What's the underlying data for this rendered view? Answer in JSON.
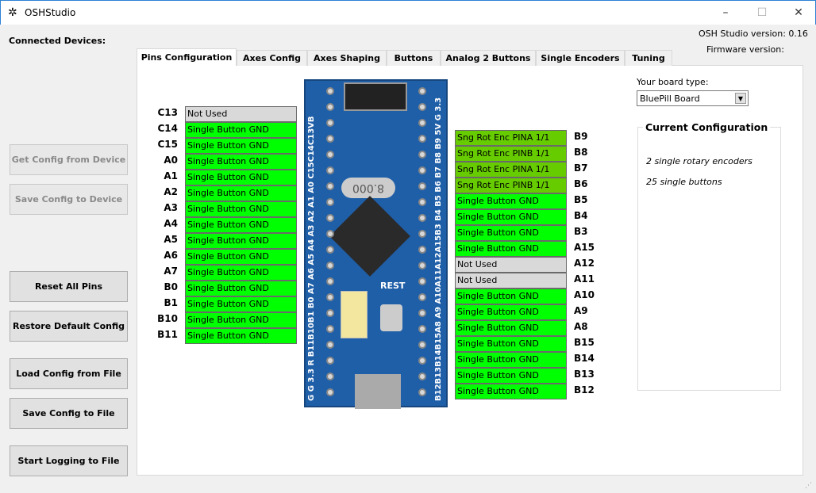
{
  "window": {
    "title": "OSHStudio",
    "app_icon": "gear-icon",
    "minimize": "–",
    "maximize": "☐",
    "close": "✕"
  },
  "connected_devices_label": "Connected Devices:",
  "version_label": "OSH Studio version: 0.16",
  "firmware_label": "Firmware version:",
  "tabs": [
    {
      "label": "Pins Configuration",
      "active": true
    },
    {
      "label": "Axes Config"
    },
    {
      "label": "Axes Shaping"
    },
    {
      "label": "Buttons"
    },
    {
      "label": "Analog 2 Buttons"
    },
    {
      "label": "Single Encoders"
    },
    {
      "label": "Tuning"
    }
  ],
  "buttons": {
    "get_config": "Get Config from Device",
    "save_config": "Save Config to Device",
    "reset": "Reset All Pins",
    "restore": "Restore Default Config",
    "load_file": "Load Config from File",
    "save_file": "Save Config to File",
    "logging": "Start Logging to File"
  },
  "board_type": {
    "label": "Your board type:",
    "value": "BluePill Board"
  },
  "current_config": {
    "title": "Current Configuration",
    "lines": [
      "2 single rotary encoders",
      "25 single buttons"
    ]
  },
  "colors": {
    "single_button": "#00ff00",
    "encoder": "#66cc00",
    "not_used": "#d9d9d9"
  },
  "left_pins": [
    {
      "pin": "C13",
      "value": "Not Used",
      "type": "not_used"
    },
    {
      "pin": "C14",
      "value": "Single Button GND",
      "type": "single_button"
    },
    {
      "pin": "C15",
      "value": "Single Button GND",
      "type": "single_button"
    },
    {
      "pin": "A0",
      "value": "Single Button GND",
      "type": "single_button"
    },
    {
      "pin": "A1",
      "value": "Single Button GND",
      "type": "single_button"
    },
    {
      "pin": "A2",
      "value": "Single Button GND",
      "type": "single_button"
    },
    {
      "pin": "A3",
      "value": "Single Button GND",
      "type": "single_button"
    },
    {
      "pin": "A4",
      "value": "Single Button GND",
      "type": "single_button"
    },
    {
      "pin": "A5",
      "value": "Single Button GND",
      "type": "single_button"
    },
    {
      "pin": "A6",
      "value": "Single Button GND",
      "type": "single_button"
    },
    {
      "pin": "A7",
      "value": "Single Button GND",
      "type": "single_button"
    },
    {
      "pin": "B0",
      "value": "Single Button GND",
      "type": "single_button"
    },
    {
      "pin": "B1",
      "value": "Single Button GND",
      "type": "single_button"
    },
    {
      "pin": "B10",
      "value": "Single Button GND",
      "type": "single_button"
    },
    {
      "pin": "B11",
      "value": "Single Button GND",
      "type": "single_button"
    }
  ],
  "right_pins": [
    {
      "pin": "B9",
      "value": "Sng Rot Enc PINA 1/1",
      "type": "encoder"
    },
    {
      "pin": "B8",
      "value": "Sng Rot Enc PINB 1/1",
      "type": "encoder"
    },
    {
      "pin": "B7",
      "value": "Sng Rot Enc PINA 1/1",
      "type": "encoder"
    },
    {
      "pin": "B6",
      "value": "Sng Rot Enc PINB 1/1",
      "type": "encoder"
    },
    {
      "pin": "B5",
      "value": "Single Button GND",
      "type": "single_button"
    },
    {
      "pin": "B4",
      "value": "Single Button GND",
      "type": "single_button"
    },
    {
      "pin": "B3",
      "value": "Single Button GND",
      "type": "single_button"
    },
    {
      "pin": "A15",
      "value": "Single Button GND",
      "type": "single_button"
    },
    {
      "pin": "A12",
      "value": "Not Used",
      "type": "not_used"
    },
    {
      "pin": "A11",
      "value": "Not Used",
      "type": "not_used"
    },
    {
      "pin": "A10",
      "value": "Single Button GND",
      "type": "single_button"
    },
    {
      "pin": "A9",
      "value": "Single Button GND",
      "type": "single_button"
    },
    {
      "pin": "A8",
      "value": "Single Button GND",
      "type": "single_button"
    },
    {
      "pin": "B15",
      "value": "Single Button GND",
      "type": "single_button"
    },
    {
      "pin": "B14",
      "value": "Single Button GND",
      "type": "single_button"
    },
    {
      "pin": "B13",
      "value": "Single Button GND",
      "type": "single_button"
    },
    {
      "pin": "B12",
      "value": "Single Button GND",
      "type": "single_button"
    }
  ],
  "board": {
    "left_silk": "G G 3.3 R B11B10B1 B0 A7 A6 A5 A4 A3 A2 A1 A0 C15C14C13VB",
    "right_silk": "B12B13B14B15A8 A9 A10A11A12A15B3 B4 B5 B6 B7 B8 B9 5V G 3.3",
    "crystal": "8.000",
    "reset_label": "REST"
  }
}
